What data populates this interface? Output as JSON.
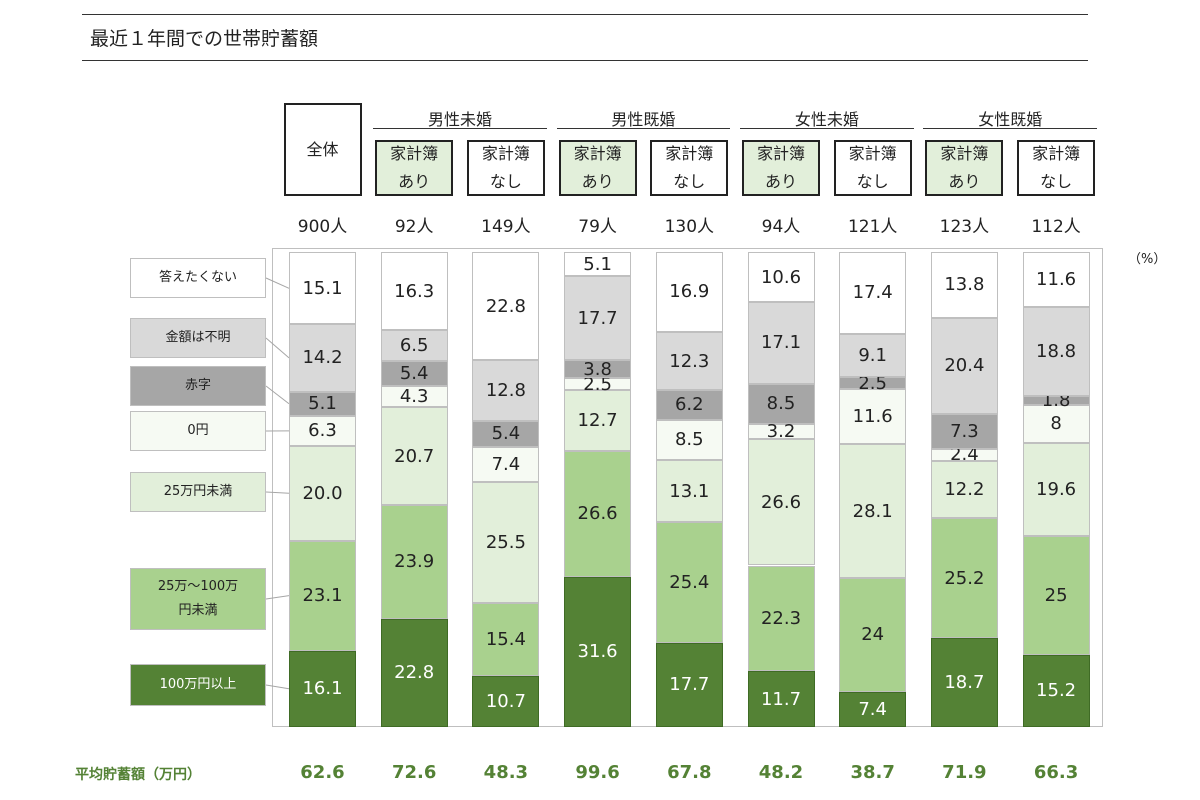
{
  "title": "最近１年間での世帯貯蓄額",
  "unit_label": "（%）",
  "colors": {
    "c100": "#548235",
    "c25_100": "#a9d18e",
    "c25": "#e2efda",
    "zero": "#f6faf3",
    "deficit": "#a6a6a6",
    "unknown": "#d9d9d9",
    "noanswer": "#ffffff",
    "subbox_yes": "#e2efda",
    "accent": "#548235"
  },
  "header": {
    "total_label": "全体",
    "groups": [
      "男性未婚",
      "男性既婚",
      "女性未婚",
      "女性既婚"
    ],
    "sub_yes": [
      "家計簿",
      "あり"
    ],
    "sub_no": [
      "家計簿",
      "なし"
    ]
  },
  "chart_data": {
    "type": "bar",
    "stacked": true,
    "categories": [
      "全体",
      "男性未婚 家計簿あり",
      "男性未婚 家計簿なし",
      "男性既婚 家計簿あり",
      "男性既婚 家計簿なし",
      "女性未婚 家計簿あり",
      "女性未婚 家計簿なし",
      "女性既婚 家計簿あり",
      "女性既婚 家計簿なし"
    ],
    "counts": [
      "900人",
      "92人",
      "149人",
      "79人",
      "130人",
      "94人",
      "121人",
      "123人",
      "112人"
    ],
    "series": [
      {
        "name": "100万円以上",
        "key": "c100",
        "values": [
          16.1,
          22.8,
          10.7,
          31.6,
          17.7,
          11.7,
          7.4,
          18.7,
          15.2
        ],
        "labels": [
          "16.1",
          "22.8",
          "10.7",
          "31.6",
          "17.7",
          "11.7",
          "7.4",
          "18.7",
          "15.2"
        ]
      },
      {
        "name": "25万～100万円未満",
        "key": "c25_100",
        "values": [
          23.1,
          23.9,
          15.4,
          26.6,
          25.4,
          22.3,
          24,
          25.2,
          25
        ],
        "labels": [
          "23.1",
          "23.9",
          "15.4",
          "26.6",
          "25.4",
          "22.3",
          "24",
          "25.2",
          "25"
        ]
      },
      {
        "name": "25万円未満",
        "key": "c25",
        "values": [
          20.0,
          20.7,
          25.5,
          12.7,
          13.1,
          26.6,
          28.1,
          12.2,
          19.6
        ],
        "labels": [
          "20.0",
          "20.7",
          "25.5",
          "12.7",
          "13.1",
          "26.6",
          "28.1",
          "12.2",
          "19.6"
        ]
      },
      {
        "name": "0円",
        "key": "zero",
        "values": [
          6.3,
          4.3,
          7.4,
          2.5,
          8.5,
          3.2,
          11.6,
          2.4,
          8
        ],
        "labels": [
          "6.3",
          "4.3",
          "7.4",
          "2.5",
          "8.5",
          "3.2",
          "11.6",
          "2.4",
          "8"
        ]
      },
      {
        "name": "赤字",
        "key": "deficit",
        "values": [
          5.1,
          5.4,
          5.4,
          3.8,
          6.2,
          8.5,
          2.5,
          7.3,
          1.8
        ],
        "labels": [
          "5.1",
          "5.4",
          "5.4",
          "3.8",
          "6.2",
          "8.5",
          "2.5",
          "7.3",
          "1.8"
        ]
      },
      {
        "name": "金額は不明",
        "key": "unknown",
        "values": [
          14.2,
          6.5,
          12.8,
          17.7,
          12.3,
          17.1,
          9.1,
          20.4,
          18.8
        ],
        "labels": [
          "14.2",
          "6.5",
          "12.8",
          "17.7",
          "12.3",
          "17.1",
          "9.1",
          "20.4",
          "18.8"
        ]
      },
      {
        "name": "答えたくない",
        "key": "noanswer",
        "values": [
          15.1,
          16.3,
          22.8,
          5.1,
          16.9,
          10.6,
          17.4,
          13.8,
          11.6
        ],
        "labels": [
          "15.1",
          "16.3",
          "22.8",
          "5.1",
          "16.9",
          "10.6",
          "17.4",
          "13.8",
          "11.6"
        ]
      }
    ],
    "ylim": [
      0,
      100
    ],
    "ylabel": "（%）"
  },
  "legend": [
    "答えたくない",
    "金額は不明",
    "赤字",
    "0円",
    "25万円未満",
    "25万～100万\n円未満",
    "100万円以上"
  ],
  "average": {
    "label": "平均貯蓄額（万円）",
    "values": [
      "62.6",
      "72.6",
      "48.3",
      "99.6",
      "67.8",
      "48.2",
      "38.7",
      "71.9",
      "66.3"
    ]
  }
}
